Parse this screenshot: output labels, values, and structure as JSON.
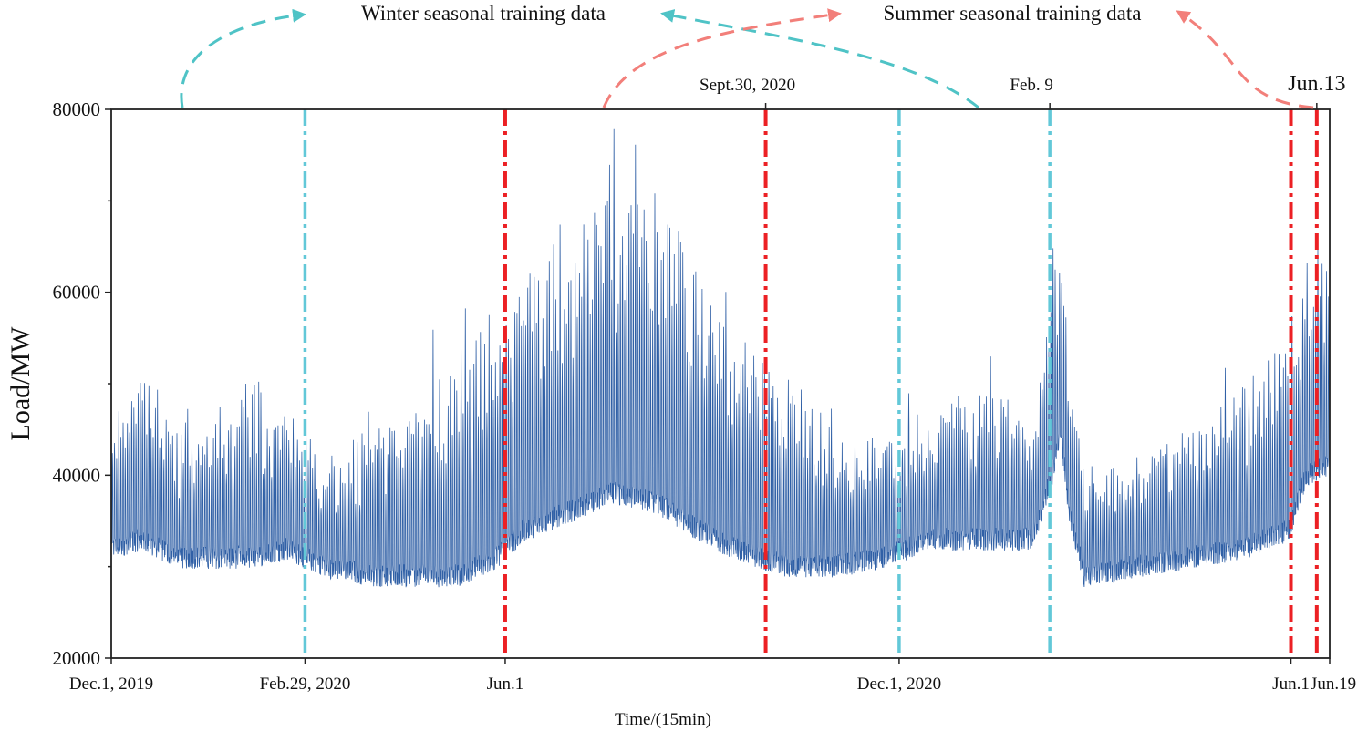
{
  "chart_data": {
    "type": "line",
    "title": "",
    "xlabel": "Time/(15min)",
    "ylabel": "Load/MW",
    "xlim": [
      "2019-12-01",
      "2021-06-19"
    ],
    "ylim": [
      20000,
      80000
    ],
    "y_major_ticks": [
      20000,
      40000,
      60000,
      80000
    ],
    "y_minor_ticks": [
      30000,
      50000,
      70000
    ],
    "grid": false,
    "line_color": "#1a4f9c",
    "x_ticks_bottom": [
      {
        "date": "2019-12-01",
        "label": "Dec.1, 2019"
      },
      {
        "date": "2020-02-29",
        "label": "Feb.29, 2020"
      },
      {
        "date": "2020-06-01",
        "label": "Jun.1"
      },
      {
        "date": "2020-12-01",
        "label": "Dec.1, 2020"
      },
      {
        "date": "2021-06-01",
        "label": "Jun.1"
      },
      {
        "date": "2021-06-19",
        "label": "Jun.19"
      }
    ],
    "x_ticks_top": [
      {
        "date": "2020-09-30",
        "label": "Sept.30, 2020"
      },
      {
        "date": "2021-02-09",
        "label": "Feb. 9"
      },
      {
        "date": "2021-06-13",
        "label": "Jun.13"
      }
    ],
    "markers": [
      {
        "date": "2020-02-29",
        "kind": "winter",
        "color": "#62c8d8"
      },
      {
        "date": "2020-12-01",
        "kind": "winter",
        "color": "#62c8d8"
      },
      {
        "date": "2021-02-09",
        "kind": "winter",
        "color": "#62c8d8"
      },
      {
        "date": "2020-06-01",
        "kind": "summer",
        "color": "#ec2024"
      },
      {
        "date": "2020-09-30",
        "kind": "summer",
        "color": "#ec2024"
      },
      {
        "date": "2021-06-01",
        "kind": "summer",
        "color": "#ec2024"
      },
      {
        "date": "2021-06-13",
        "kind": "summer",
        "color": "#ec2024"
      }
    ],
    "annotations": {
      "winter": {
        "text": "Winter seasonal training data",
        "color": "#4fc3c6"
      },
      "summer": {
        "text": "Summer seasonal training data",
        "color": "#f27f7a"
      }
    },
    "load_envelope": [
      {
        "date": "2019-12-01",
        "low": 32000,
        "high": 45000
      },
      {
        "date": "2019-12-15",
        "low": 33000,
        "high": 53000
      },
      {
        "date": "2020-01-01",
        "low": 31000,
        "high": 44000
      },
      {
        "date": "2020-01-20",
        "low": 31000,
        "high": 46000
      },
      {
        "date": "2020-02-05",
        "low": 31000,
        "high": 50000
      },
      {
        "date": "2020-02-20",
        "low": 32000,
        "high": 47000
      },
      {
        "date": "2020-03-10",
        "low": 30000,
        "high": 41000
      },
      {
        "date": "2020-04-01",
        "low": 29000,
        "high": 45000
      },
      {
        "date": "2020-04-20",
        "low": 29000,
        "high": 47000
      },
      {
        "date": "2020-05-10",
        "low": 29000,
        "high": 53000
      },
      {
        "date": "2020-05-28",
        "low": 31000,
        "high": 58000
      },
      {
        "date": "2020-06-10",
        "low": 34000,
        "high": 63000
      },
      {
        "date": "2020-07-01",
        "low": 36000,
        "high": 66000
      },
      {
        "date": "2020-07-20",
        "low": 38000,
        "high": 71000
      },
      {
        "date": "2020-08-10",
        "low": 37000,
        "high": 72000
      },
      {
        "date": "2020-08-30",
        "low": 34000,
        "high": 62000
      },
      {
        "date": "2020-09-15",
        "low": 32000,
        "high": 55000
      },
      {
        "date": "2020-10-10",
        "low": 30000,
        "high": 52000
      },
      {
        "date": "2020-11-01",
        "low": 30000,
        "high": 44000
      },
      {
        "date": "2020-11-25",
        "low": 31000,
        "high": 43000
      },
      {
        "date": "2020-12-15",
        "low": 33000,
        "high": 48000
      },
      {
        "date": "2021-01-10",
        "low": 33000,
        "high": 50000
      },
      {
        "date": "2021-02-01",
        "low": 33000,
        "high": 46000
      },
      {
        "date": "2021-02-10",
        "low": 40000,
        "high": 62000
      },
      {
        "date": "2021-02-14",
        "low": 45000,
        "high": 66000
      },
      {
        "date": "2021-02-18",
        "low": 36000,
        "high": 52000
      },
      {
        "date": "2021-02-25",
        "low": 29000,
        "high": 40000
      },
      {
        "date": "2021-03-20",
        "low": 30000,
        "high": 41000
      },
      {
        "date": "2021-04-15",
        "low": 31000,
        "high": 45000
      },
      {
        "date": "2021-05-10",
        "low": 32000,
        "high": 50000
      },
      {
        "date": "2021-05-31",
        "low": 34000,
        "high": 55000
      },
      {
        "date": "2021-06-08",
        "low": 40000,
        "high": 64000
      },
      {
        "date": "2021-06-19",
        "low": 41000,
        "high": 68000
      }
    ]
  }
}
